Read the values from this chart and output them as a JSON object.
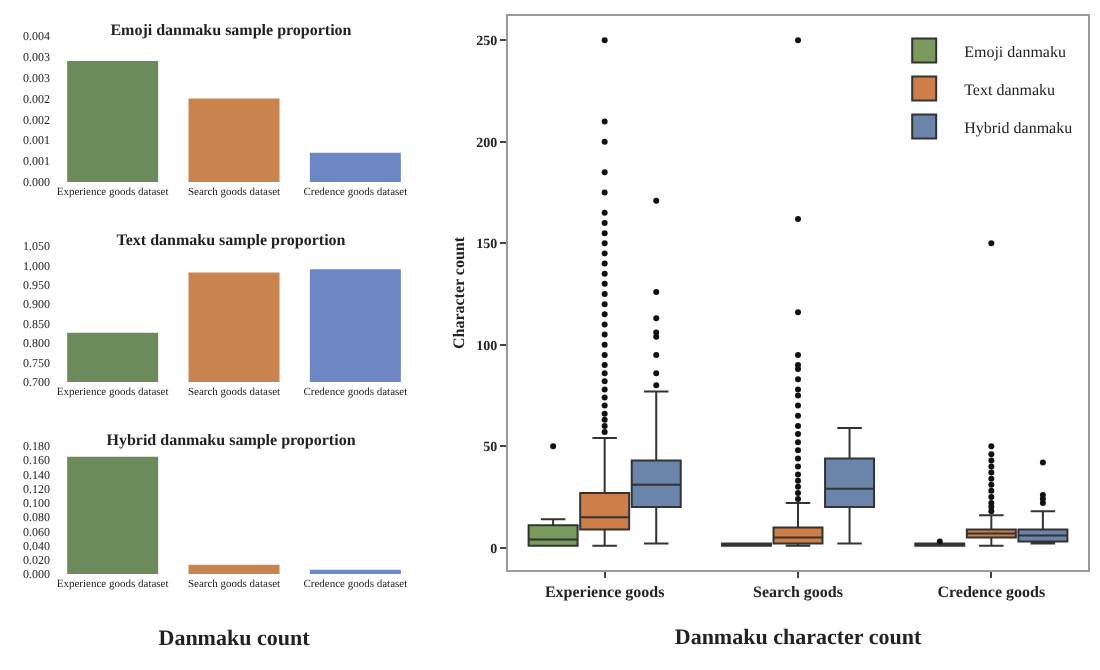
{
  "chart_data": [
    {
      "type": "bar",
      "title": "Emoji danmaku sample proportion",
      "categories": [
        "Experience goods dataset",
        "Search goods dataset",
        "Credence goods dataset"
      ],
      "values": [
        0.0029,
        0.002,
        0.0007
      ],
      "colors": [
        "#6b8c5a",
        "#c8834f",
        "#6d87c4"
      ],
      "ylim": [
        0,
        0.0035
      ],
      "yticks": [
        {
          "value": 0,
          "label": "0.000"
        },
        {
          "value": 0.0005,
          "label": "0.001"
        },
        {
          "value": 0.001,
          "label": "0.001"
        },
        {
          "value": 0.0015,
          "label": "0.002"
        },
        {
          "value": 0.002,
          "label": "0.002"
        },
        {
          "value": 0.0025,
          "label": "0.003"
        },
        {
          "value": 0.003,
          "label": "0.003"
        },
        {
          "value": 0.0035,
          "label": "0.004"
        }
      ]
    },
    {
      "type": "bar",
      "title": "Text danmaku sample proportion",
      "categories": [
        "Experience goods dataset",
        "Search goods dataset",
        "Credence goods dataset"
      ],
      "values": [
        0.827,
        0.982,
        0.99
      ],
      "colors": [
        "#6b8c5a",
        "#c8834f",
        "#6d87c4"
      ],
      "ylim": [
        0.7,
        1.05
      ],
      "yticks": [
        {
          "value": 0.7,
          "label": "0.700"
        },
        {
          "value": 0.75,
          "label": "0.750"
        },
        {
          "value": 0.8,
          "label": "0.800"
        },
        {
          "value": 0.85,
          "label": "0.850"
        },
        {
          "value": 0.9,
          "label": "0.900"
        },
        {
          "value": 0.95,
          "label": "0.950"
        },
        {
          "value": 1,
          "label": "1.000"
        },
        {
          "value": 1.05,
          "label": "1.050"
        }
      ]
    },
    {
      "type": "bar",
      "title": "Hybrid danmaku sample proportion",
      "xlabel": "Danmaku count",
      "categories": [
        "Experience goods dataset",
        "Search goods dataset",
        "Credence goods dataset"
      ],
      "values": [
        0.165,
        0.013,
        0.006
      ],
      "colors": [
        "#6b8c5a",
        "#c8834f",
        "#6d87c4"
      ],
      "ylim": [
        0,
        0.18
      ],
      "yticks": [
        {
          "value": 0,
          "label": "0.000"
        },
        {
          "value": 0.02,
          "label": "0.020"
        },
        {
          "value": 0.04,
          "label": "0.040"
        },
        {
          "value": 0.06,
          "label": "0.060"
        },
        {
          "value": 0.08,
          "label": "0.080"
        },
        {
          "value": 0.1,
          "label": "0.100"
        },
        {
          "value": 0.12,
          "label": "0.120"
        },
        {
          "value": 0.14,
          "label": "0.140"
        },
        {
          "value": 0.16,
          "label": "0.160"
        },
        {
          "value": 0.18,
          "label": "0.180"
        }
      ]
    },
    {
      "type": "box",
      "xlabel": "Danmaku character count",
      "ylabel": "Character count",
      "categories": [
        "Experience goods",
        "Search goods",
        "Credence goods"
      ],
      "ylim": [
        -11,
        262
      ],
      "yticks": [
        0,
        50,
        100,
        150,
        200,
        250
      ],
      "legend": "top right",
      "series": [
        {
          "name": "Emoji danmaku",
          "color": "#7a9a5e",
          "boxes": [
            {
              "low": 1,
              "q1": 1,
              "median": 4,
              "q3": 11,
              "high": 14,
              "outliers": [
                50
              ]
            },
            {
              "low": 1,
              "q1": 1,
              "median": 1,
              "q3": 2,
              "high": 2
            },
            {
              "low": 1,
              "q1": 1,
              "median": 1,
              "q3": 2,
              "high": 2,
              "outliers": [
                3
              ]
            }
          ]
        },
        {
          "name": "Text danmaku",
          "color": "#cd7e49",
          "boxes": [
            {
              "low": 1,
              "q1": 9,
              "median": 15,
              "q3": 27,
              "high": 54,
              "outliers": [
                57,
                60,
                63,
                66,
                70,
                74,
                78,
                82,
                86,
                90,
                95,
                100,
                105,
                110,
                115,
                120,
                125,
                130,
                135,
                140,
                145,
                150,
                155,
                160,
                165,
                175,
                185,
                200,
                210,
                250
              ]
            },
            {
              "low": 1,
              "q1": 2,
              "median": 5,
              "q3": 10,
              "high": 22,
              "outliers": [
                24,
                27,
                30,
                33,
                36,
                40,
                44,
                48,
                52,
                56,
                60,
                65,
                70,
                75,
                78,
                83,
                88,
                90,
                95,
                116,
                162,
                250
              ]
            },
            {
              "low": 1,
              "q1": 5,
              "median": 7,
              "q3": 9,
              "high": 16,
              "outliers": [
                18,
                20,
                22,
                25,
                28,
                31,
                34,
                37,
                40,
                43,
                46,
                50,
                150
              ]
            }
          ]
        },
        {
          "name": "Hybrid danmaku",
          "color": "#6a84aa",
          "boxes": [
            {
              "low": 2,
              "q1": 20,
              "median": 31,
              "q3": 43,
              "high": 77,
              "outliers": [
                80,
                86,
                95,
                104,
                106,
                113,
                126,
                171
              ]
            },
            {
              "low": 2,
              "q1": 20,
              "median": 29,
              "q3": 44,
              "high": 59
            },
            {
              "low": 2,
              "q1": 3,
              "median": 6,
              "q3": 9,
              "high": 18,
              "outliers": [
                22,
                24,
                26,
                42
              ]
            }
          ]
        }
      ]
    }
  ]
}
